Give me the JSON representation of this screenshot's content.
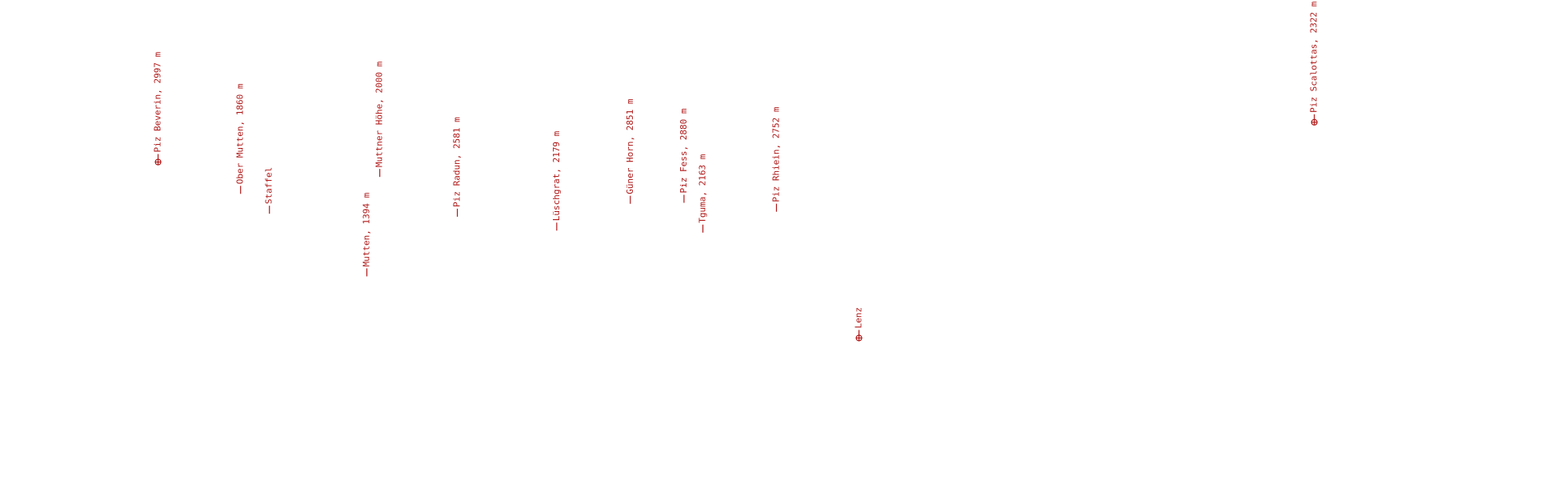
{
  "peaks": [
    {
      "label": "Piz Beverin, 2997 m"
    },
    {
      "label": "Ober Mutten, 1860 m"
    },
    {
      "label": "Staffel"
    },
    {
      "label": "Mutten, 1394 m"
    },
    {
      "label": "Muttner Höhe, 2000 m"
    },
    {
      "label": "Piz Radun, 2581 m"
    },
    {
      "label": "Lüschgrat, 2179 m"
    },
    {
      "label": "Güner Horn, 2851 m"
    },
    {
      "label": "Piz Fess, 2880 m"
    },
    {
      "label": "Tguma, 2163 m"
    },
    {
      "label": "Piz Rhiein, 2752 m"
    },
    {
      "label": "Lenz"
    },
    {
      "label": "Piz Scalottas, 2322 m"
    }
  ]
}
